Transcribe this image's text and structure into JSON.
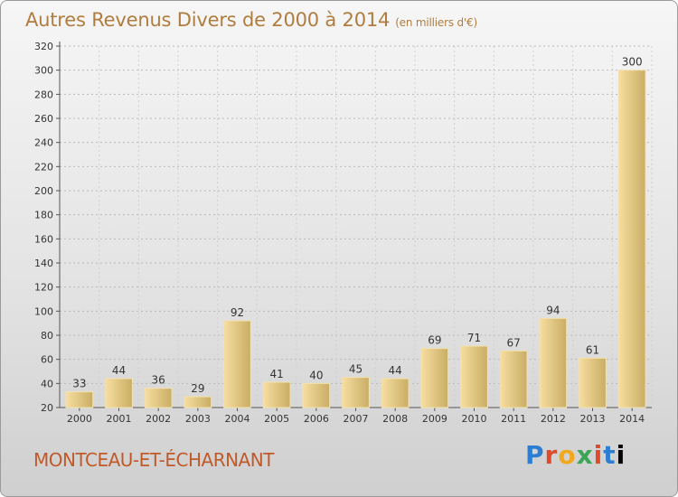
{
  "header": {
    "title": "Autres Revenus Divers de 2000 à 2014",
    "subtitle": "(en milliers d'€)"
  },
  "footer": {
    "commune": "MONTCEAU-ET-ÉCHARNANT",
    "logo": "Proxiti"
  },
  "colors": {
    "bar_light": "#f7dea0",
    "bar_dark": "#c9ad65",
    "title": "#b07c3f",
    "commune": "#c05a2a"
  },
  "chart_data": {
    "type": "bar",
    "title": "Autres Revenus Divers de 2000 à 2014",
    "categories": [
      "2000",
      "2001",
      "2002",
      "2003",
      "2004",
      "2005",
      "2006",
      "2007",
      "2008",
      "2009",
      "2010",
      "2011",
      "2012",
      "2013",
      "2014"
    ],
    "values": [
      33,
      44,
      36,
      29,
      92,
      41,
      40,
      45,
      44,
      69,
      71,
      67,
      94,
      61,
      300
    ],
    "ylim": [
      20,
      320
    ],
    "yticks": [
      20,
      40,
      60,
      80,
      100,
      120,
      140,
      160,
      180,
      200,
      220,
      240,
      260,
      280,
      300,
      320
    ],
    "grid": true,
    "xlabel": "",
    "ylabel": ""
  }
}
